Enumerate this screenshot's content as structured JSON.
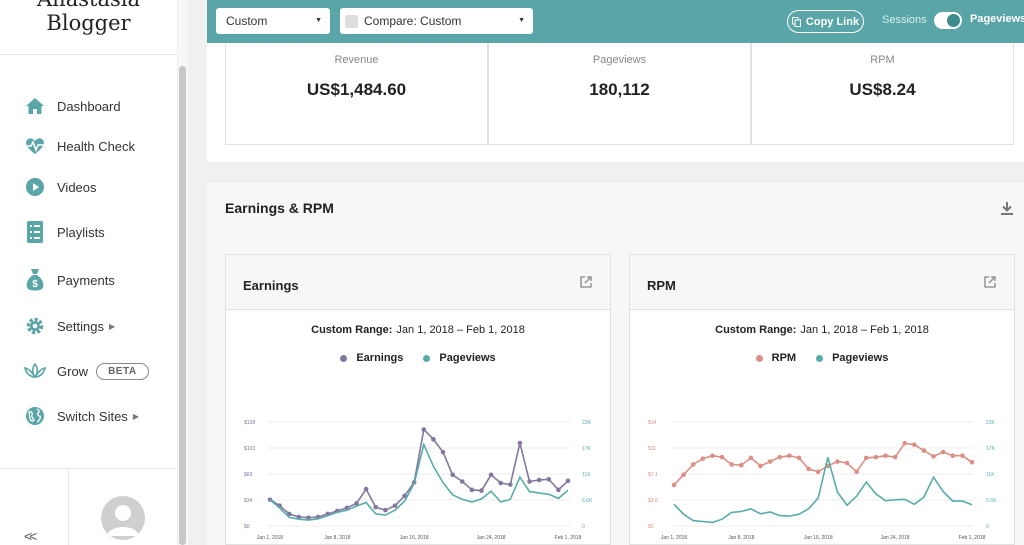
{
  "brand": {
    "line1": "Anastasia",
    "line2": "Blogger"
  },
  "nav": [
    {
      "label": "Dashboard",
      "icon": "home-icon"
    },
    {
      "label": "Health Check",
      "icon": "heartbeat-icon"
    },
    {
      "label": "Videos",
      "icon": "play-circle-icon"
    },
    {
      "label": "Playlists",
      "icon": "checklist-icon"
    },
    {
      "label": "Payments",
      "icon": "money-bag-icon"
    },
    {
      "label": "Settings",
      "icon": "gear-icon"
    },
    {
      "label": "Grow",
      "icon": "lotus-icon",
      "badge": "BETA"
    },
    {
      "label": "Switch Sites",
      "icon": "globe-icon"
    }
  ],
  "sidebar_footer": {
    "collapse": "<<"
  },
  "topbar": {
    "range_select": "Custom",
    "compare_select": "Compare: Custom",
    "copy_link": "Copy Link",
    "sessions_label": "Sessions",
    "pageviews_label": "Pageviews",
    "toggle_on": true
  },
  "stats": [
    {
      "label": "Revenue",
      "value": "US$1,484.60"
    },
    {
      "label": "Pageviews",
      "value": "180,112"
    },
    {
      "label": "RPM",
      "value": "US$8.24"
    }
  ],
  "section": {
    "title": "Earnings & RPM"
  },
  "colors": {
    "teal": "#5aa5a7",
    "purple": "#84779f",
    "pink": "#dd8f86",
    "pageviews": "#57acab"
  },
  "cards": [
    {
      "title": "Earnings",
      "range_label": "Custom Range:",
      "range_value": "Jan 1, 2018 – Feb 1, 2018",
      "legend": [
        "Earnings",
        "Pageviews"
      ]
    },
    {
      "title": "RPM",
      "range_label": "Custom Range:",
      "range_value": "Jan 1, 2018 – Feb 1, 2018",
      "legend": [
        "RPM",
        "Pageviews"
      ]
    }
  ],
  "chart_data": [
    {
      "type": "line",
      "x": [
        "Jan 1, 2018",
        "Jan 2",
        "Jan 3",
        "Jan 4",
        "Jan 5",
        "Jan 6",
        "Jan 7",
        "Jan 8, 2018",
        "Jan 9",
        "Jan 10",
        "Jan 11",
        "Jan 12",
        "Jan 13",
        "Jan 14",
        "Jan 15",
        "Jan 16, 2018",
        "Jan 17",
        "Jan 18",
        "Jan 19",
        "Jan 20",
        "Jan 21",
        "Jan 22",
        "Jan 23",
        "Jan 24, 2018",
        "Jan 25",
        "Jan 26",
        "Jan 27",
        "Jan 28",
        "Jan 29",
        "Jan 30",
        "Jan 31",
        "Feb 1, 2018"
      ],
      "x_ticks": [
        "Jan 1, 2018",
        "Jan 8, 2018",
        "Jan 16, 2018",
        "Jan 24, 2018",
        "Feb 1, 2018"
      ],
      "left_ticks": [
        "$0",
        "$34",
        "$69",
        "$103",
        "$138"
      ],
      "right_ticks": [
        "0",
        "5.6K",
        "11K",
        "17K",
        "23K"
      ],
      "ylim_left": [
        0,
        138
      ],
      "ylim_right": [
        0,
        23000
      ],
      "series": [
        {
          "name": "Earnings",
          "axis": "left",
          "values": [
            35,
            27,
            16,
            12,
            11,
            12,
            16,
            20,
            24,
            30,
            49,
            25,
            21,
            27,
            40,
            58,
            128,
            115,
            98,
            68,
            59,
            48,
            47,
            68,
            57,
            55,
            110,
            59,
            61,
            62,
            48,
            60
          ]
        },
        {
          "name": "Pageviews",
          "axis": "right",
          "values": [
            5800,
            4000,
            1900,
            1500,
            1300,
            1600,
            2300,
            3000,
            3500,
            4400,
            5200,
            2700,
            2400,
            3500,
            5500,
            9400,
            18000,
            13200,
            9600,
            6900,
            5900,
            5300,
            6000,
            7700,
            5300,
            5900,
            10800,
            7600,
            7300,
            7000,
            6100,
            7900
          ]
        }
      ]
    },
    {
      "type": "line",
      "x": [
        "Jan 1, 2018",
        "Jan 2",
        "Jan 3",
        "Jan 4",
        "Jan 5",
        "Jan 6",
        "Jan 7",
        "Jan 8, 2018",
        "Jan 9",
        "Jan 10",
        "Jan 11",
        "Jan 12",
        "Jan 13",
        "Jan 14",
        "Jan 15",
        "Jan 16, 2018",
        "Jan 17",
        "Jan 18",
        "Jan 19",
        "Jan 20",
        "Jan 21",
        "Jan 22",
        "Jan 23",
        "Jan 24, 2018",
        "Jan 25",
        "Jan 26",
        "Jan 27",
        "Jan 28",
        "Jan 29",
        "Jan 30",
        "Jan 31",
        "Feb 1, 2018"
      ],
      "x_ticks": [
        "Jan 1, 2018",
        "Jan 8, 2018",
        "Jan 16, 2018",
        "Jan 24, 2018",
        "Feb 1, 2018"
      ],
      "left_ticks": [
        "$0",
        "$3.6",
        "$7.1",
        "$11",
        "$14"
      ],
      "right_ticks": [
        "0",
        "5.6K",
        "11K",
        "17K",
        "23K"
      ],
      "ylim_left": [
        0,
        14.2
      ],
      "ylim_right": [
        0,
        23000
      ],
      "series": [
        {
          "name": "RPM",
          "axis": "left",
          "values": [
            5.6,
            7.0,
            8.4,
            9.2,
            9.6,
            9.4,
            8.4,
            8.3,
            9.3,
            8.2,
            8.8,
            9.4,
            9.6,
            9.3,
            7.8,
            7.4,
            8.2,
            8.8,
            8.6,
            7.4,
            9.3,
            9.4,
            9.6,
            9.4,
            11.3,
            11.1,
            10.3,
            9.5,
            10.1,
            9.6,
            9.6,
            8.7
          ]
        },
        {
          "name": "Pageviews",
          "axis": "right",
          "values": [
            4800,
            2600,
            1200,
            1000,
            800,
            1500,
            3000,
            3200,
            3800,
            2700,
            3100,
            2300,
            2200,
            2600,
            3800,
            6200,
            15200,
            7500,
            4600,
            6600,
            9700,
            7100,
            5600,
            5800,
            5900,
            4800,
            6400,
            10800,
            7600,
            5500,
            5500,
            4700
          ]
        }
      ]
    }
  ]
}
